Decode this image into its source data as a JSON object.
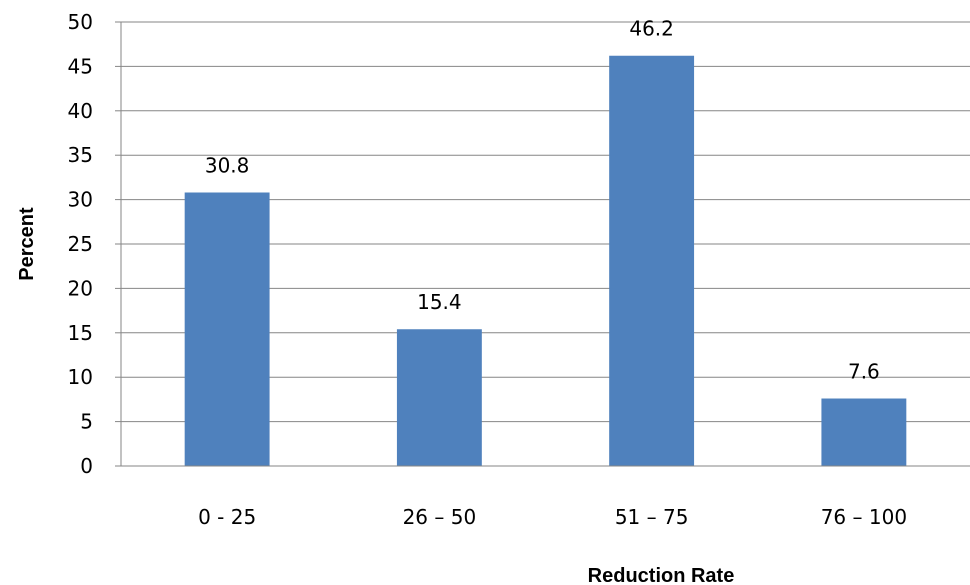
{
  "chart_data": {
    "type": "bar",
    "categories": [
      "0 - 25",
      "26 – 50",
      "51 – 75",
      "76 – 100"
    ],
    "values": [
      30.8,
      15.4,
      46.2,
      7.6
    ],
    "data_labels": [
      "30.8",
      "15.4",
      "46.2",
      "7.6"
    ],
    "xlabel": "Reduction Rate",
    "ylabel": "Percent",
    "ylim": [
      0,
      50
    ],
    "ytick_step": 5,
    "grid": true,
    "legend": "none",
    "bar_color": "#4f81bd",
    "grid_color": "#868686"
  }
}
